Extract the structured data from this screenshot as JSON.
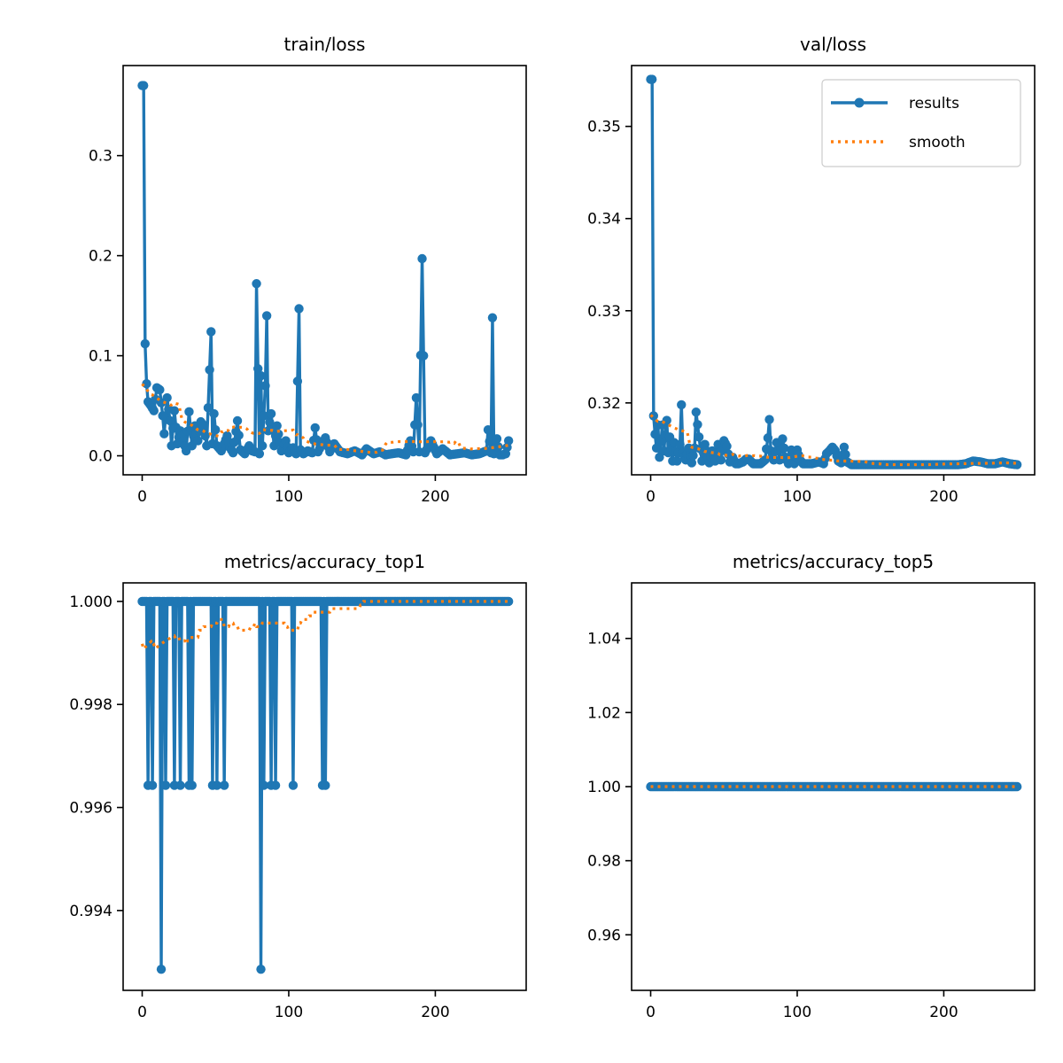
{
  "chart_data": [
    {
      "id": "train_loss",
      "type": "line",
      "title": "train/loss",
      "xlabel": "",
      "ylabel": "",
      "xlim": [
        -13,
        262
      ],
      "ylim": [
        -0.019,
        0.39
      ],
      "xticks": [
        0,
        100,
        200
      ],
      "xtick_labels": [
        "0",
        "100",
        "200"
      ],
      "yticks": [
        0.0,
        0.1,
        0.2,
        0.3
      ],
      "ytick_labels": [
        "0.0",
        "0.1",
        "0.2",
        "0.3"
      ],
      "legend": null,
      "anchors": [
        [
          1,
          0.37
        ],
        [
          2,
          0.112
        ],
        [
          3,
          0.072
        ],
        [
          4,
          0.054
        ],
        [
          6,
          0.05
        ],
        [
          8,
          0.045
        ],
        [
          10,
          0.068
        ],
        [
          12,
          0.066
        ],
        [
          14,
          0.04
        ],
        [
          15,
          0.022
        ],
        [
          17,
          0.058
        ],
        [
          19,
          0.035
        ],
        [
          20,
          0.01
        ],
        [
          22,
          0.045
        ],
        [
          24,
          0.012
        ],
        [
          26,
          0.025
        ],
        [
          28,
          0.015
        ],
        [
          30,
          0.005
        ],
        [
          32,
          0.044
        ],
        [
          34,
          0.01
        ],
        [
          36,
          0.03
        ],
        [
          38,
          0.015
        ],
        [
          40,
          0.034
        ],
        [
          42,
          0.03
        ],
        [
          44,
          0.01
        ],
        [
          47,
          0.124
        ],
        [
          48,
          0.012
        ],
        [
          49,
          0.042
        ],
        [
          51,
          0.01
        ],
        [
          54,
          0.005
        ],
        [
          56,
          0.012
        ],
        [
          58,
          0.02
        ],
        [
          60,
          0.008
        ],
        [
          62,
          0.003
        ],
        [
          65,
          0.035
        ],
        [
          67,
          0.006
        ],
        [
          70,
          0.002
        ],
        [
          73,
          0.01
        ],
        [
          75,
          0.005
        ],
        [
          77,
          0.004
        ],
        [
          78,
          0.172
        ],
        [
          80,
          0.002
        ],
        [
          81,
          0.08
        ],
        [
          82,
          0.01
        ],
        [
          84,
          0.07
        ],
        [
          85,
          0.14
        ],
        [
          86,
          0.025
        ],
        [
          88,
          0.042
        ],
        [
          90,
          0.01
        ],
        [
          92,
          0.03
        ],
        [
          95,
          0.005
        ],
        [
          98,
          0.015
        ],
        [
          100,
          0.003
        ],
        [
          103,
          0.008
        ],
        [
          105,
          0.002
        ],
        [
          107,
          0.147
        ],
        [
          108,
          0.006
        ],
        [
          110,
          0.002
        ],
        [
          113,
          0.005
        ],
        [
          116,
          0.003
        ],
        [
          118,
          0.028
        ],
        [
          120,
          0.004
        ],
        [
          122,
          0.01
        ],
        [
          125,
          0.018
        ],
        [
          128,
          0.004
        ],
        [
          131,
          0.012
        ],
        [
          135,
          0.004
        ],
        [
          140,
          0.002
        ],
        [
          145,
          0.005
        ],
        [
          150,
          0.001
        ],
        [
          153,
          0.007
        ],
        [
          158,
          0.002
        ],
        [
          162,
          0.004
        ],
        [
          166,
          0.001
        ],
        [
          170,
          0.002
        ],
        [
          175,
          0.003
        ],
        [
          180,
          0.001
        ],
        [
          183,
          0.015
        ],
        [
          185,
          0.004
        ],
        [
          187,
          0.058
        ],
        [
          189,
          0.004
        ],
        [
          191,
          0.197
        ],
        [
          193,
          0.003
        ],
        [
          197,
          0.015
        ],
        [
          201,
          0.002
        ],
        [
          205,
          0.007
        ],
        [
          210,
          0.001
        ],
        [
          215,
          0.002
        ],
        [
          220,
          0.003
        ],
        [
          225,
          0.001
        ],
        [
          230,
          0.002
        ],
        [
          235,
          0.005
        ],
        [
          236,
          0.026
        ],
        [
          238,
          0.003
        ],
        [
          239,
          0.138
        ],
        [
          240,
          0.002
        ],
        [
          242,
          0.017
        ],
        [
          244,
          0.001
        ],
        [
          246,
          0.001
        ],
        [
          248,
          0.002
        ],
        [
          250,
          0.015
        ]
      ],
      "series": [
        {
          "name": "results",
          "color": "#1f77b4",
          "style": "solid-markers",
          "source": "anchors"
        },
        {
          "name": "smooth",
          "color": "#ff7f0e",
          "style": "dotted",
          "source": "smooth_of_results",
          "span": 0.1
        }
      ]
    },
    {
      "id": "val_loss",
      "type": "line",
      "title": "val/loss",
      "xlabel": "",
      "ylabel": "",
      "xlim": [
        -13,
        262
      ],
      "ylim": [
        0.3122,
        0.3566
      ],
      "xticks": [
        0,
        100,
        200
      ],
      "xtick_labels": [
        "0",
        "100",
        "200"
      ],
      "yticks": [
        0.32,
        0.33,
        0.34,
        0.35
      ],
      "ytick_labels": [
        "0.32",
        "0.33",
        "0.34",
        "0.35"
      ],
      "legend": {
        "position": "top-right",
        "entries": [
          "results",
          "smooth"
        ]
      },
      "anchors": [
        [
          1,
          0.3551
        ],
        [
          2,
          0.3186
        ],
        [
          3,
          0.3166
        ],
        [
          4,
          0.3151
        ],
        [
          5,
          0.3176
        ],
        [
          6,
          0.3141
        ],
        [
          8,
          0.3176
        ],
        [
          9,
          0.3148
        ],
        [
          11,
          0.3181
        ],
        [
          12,
          0.3146
        ],
        [
          13,
          0.3163
        ],
        [
          15,
          0.3137
        ],
        [
          16,
          0.3157
        ],
        [
          18,
          0.3137
        ],
        [
          20,
          0.3155
        ],
        [
          21,
          0.3198
        ],
        [
          22,
          0.3146
        ],
        [
          24,
          0.3138
        ],
        [
          26,
          0.3151
        ],
        [
          28,
          0.3135
        ],
        [
          30,
          0.3151
        ],
        [
          31,
          0.319
        ],
        [
          33,
          0.3163
        ],
        [
          35,
          0.3137
        ],
        [
          37,
          0.3155
        ],
        [
          40,
          0.3135
        ],
        [
          42,
          0.3148
        ],
        [
          44,
          0.3137
        ],
        [
          46,
          0.3155
        ],
        [
          48,
          0.3138
        ],
        [
          50,
          0.3159
        ],
        [
          52,
          0.3153
        ],
        [
          54,
          0.3136
        ],
        [
          56,
          0.3141
        ],
        [
          58,
          0.3134
        ],
        [
          60,
          0.3134
        ],
        [
          63,
          0.3136
        ],
        [
          65,
          0.3139
        ],
        [
          67,
          0.3139
        ],
        [
          70,
          0.3134
        ],
        [
          75,
          0.3134
        ],
        [
          78,
          0.3138
        ],
        [
          80,
          0.3162
        ],
        [
          81,
          0.3182
        ],
        [
          82,
          0.3148
        ],
        [
          84,
          0.3138
        ],
        [
          86,
          0.3157
        ],
        [
          88,
          0.3138
        ],
        [
          90,
          0.3161
        ],
        [
          92,
          0.3141
        ],
        [
          94,
          0.3134
        ],
        [
          96,
          0.3149
        ],
        [
          98,
          0.3134
        ],
        [
          100,
          0.3149
        ],
        [
          102,
          0.3138
        ],
        [
          104,
          0.3134
        ],
        [
          110,
          0.3134
        ],
        [
          115,
          0.3136
        ],
        [
          118,
          0.3134
        ],
        [
          120,
          0.3145
        ],
        [
          122,
          0.3148
        ],
        [
          124,
          0.3152
        ],
        [
          126,
          0.3148
        ],
        [
          128,
          0.3137
        ],
        [
          130,
          0.3135
        ],
        [
          132,
          0.3152
        ],
        [
          134,
          0.3136
        ],
        [
          137,
          0.3133
        ],
        [
          150,
          0.3133
        ],
        [
          200,
          0.3133
        ],
        [
          210,
          0.3133
        ],
        [
          215,
          0.3134
        ],
        [
          220,
          0.3137
        ],
        [
          225,
          0.3136
        ],
        [
          230,
          0.3134
        ],
        [
          235,
          0.3134
        ],
        [
          240,
          0.3136
        ],
        [
          245,
          0.3134
        ],
        [
          250,
          0.3133
        ]
      ],
      "series": [
        {
          "name": "results",
          "color": "#1f77b4",
          "style": "solid-markers",
          "source": "anchors"
        },
        {
          "name": "smooth",
          "color": "#ff7f0e",
          "style": "dotted",
          "source": "smooth_of_results",
          "span": 0.1
        }
      ]
    },
    {
      "id": "accuracy_top1",
      "type": "line",
      "title": "metrics/accuracy_top1",
      "xlabel": "",
      "ylabel": "",
      "xlim": [
        -13,
        262
      ],
      "ylim": [
        0.99245,
        1.00036
      ],
      "xticks": [
        0,
        100,
        200
      ],
      "xtick_labels": [
        "0",
        "100",
        "200"
      ],
      "yticks": [
        0.994,
        0.996,
        0.998,
        1.0
      ],
      "ytick_labels": [
        "0.994",
        "0.996",
        "0.998",
        "1.000"
      ],
      "legend": null,
      "dips": [
        [
          4,
          0.99643
        ],
        [
          7,
          0.99643
        ],
        [
          13,
          0.99286
        ],
        [
          16,
          0.99643
        ],
        [
          22,
          0.99643
        ],
        [
          26,
          0.99643
        ],
        [
          32,
          0.99643
        ],
        [
          34,
          0.99643
        ],
        [
          48,
          0.99643
        ],
        [
          51,
          0.99643
        ],
        [
          56,
          0.99643
        ],
        [
          81,
          0.99286
        ],
        [
          83,
          0.99643
        ],
        [
          88,
          0.99643
        ],
        [
          91,
          0.99643
        ],
        [
          103,
          0.99643
        ],
        [
          123,
          0.99643
        ],
        [
          125,
          0.99643
        ]
      ],
      "baseline": 1.0,
      "series": [
        {
          "name": "results",
          "color": "#1f77b4",
          "style": "solid-markers",
          "source": "dips"
        },
        {
          "name": "smooth",
          "color": "#ff7f0e",
          "style": "dotted",
          "source": "smooth_of_results",
          "span": 0.1
        }
      ]
    },
    {
      "id": "accuracy_top5",
      "type": "line",
      "title": "metrics/accuracy_top5",
      "xlabel": "",
      "ylabel": "",
      "xlim": [
        -13,
        262
      ],
      "ylim": [
        0.945,
        1.055
      ],
      "xticks": [
        0,
        100,
        200
      ],
      "xtick_labels": [
        "0",
        "100",
        "200"
      ],
      "yticks": [
        0.96,
        0.98,
        1.0,
        1.02,
        1.04
      ],
      "ytick_labels": [
        "0.96",
        "0.98",
        "1.00",
        "1.02",
        "1.04"
      ],
      "legend": null,
      "constant": 1.0,
      "series": [
        {
          "name": "results",
          "color": "#1f77b4",
          "style": "solid-markers",
          "source": "constant"
        },
        {
          "name": "smooth",
          "color": "#ff7f0e",
          "style": "dotted",
          "source": "constant"
        }
      ]
    }
  ],
  "epochs": {
    "first": 0,
    "last": 250
  }
}
